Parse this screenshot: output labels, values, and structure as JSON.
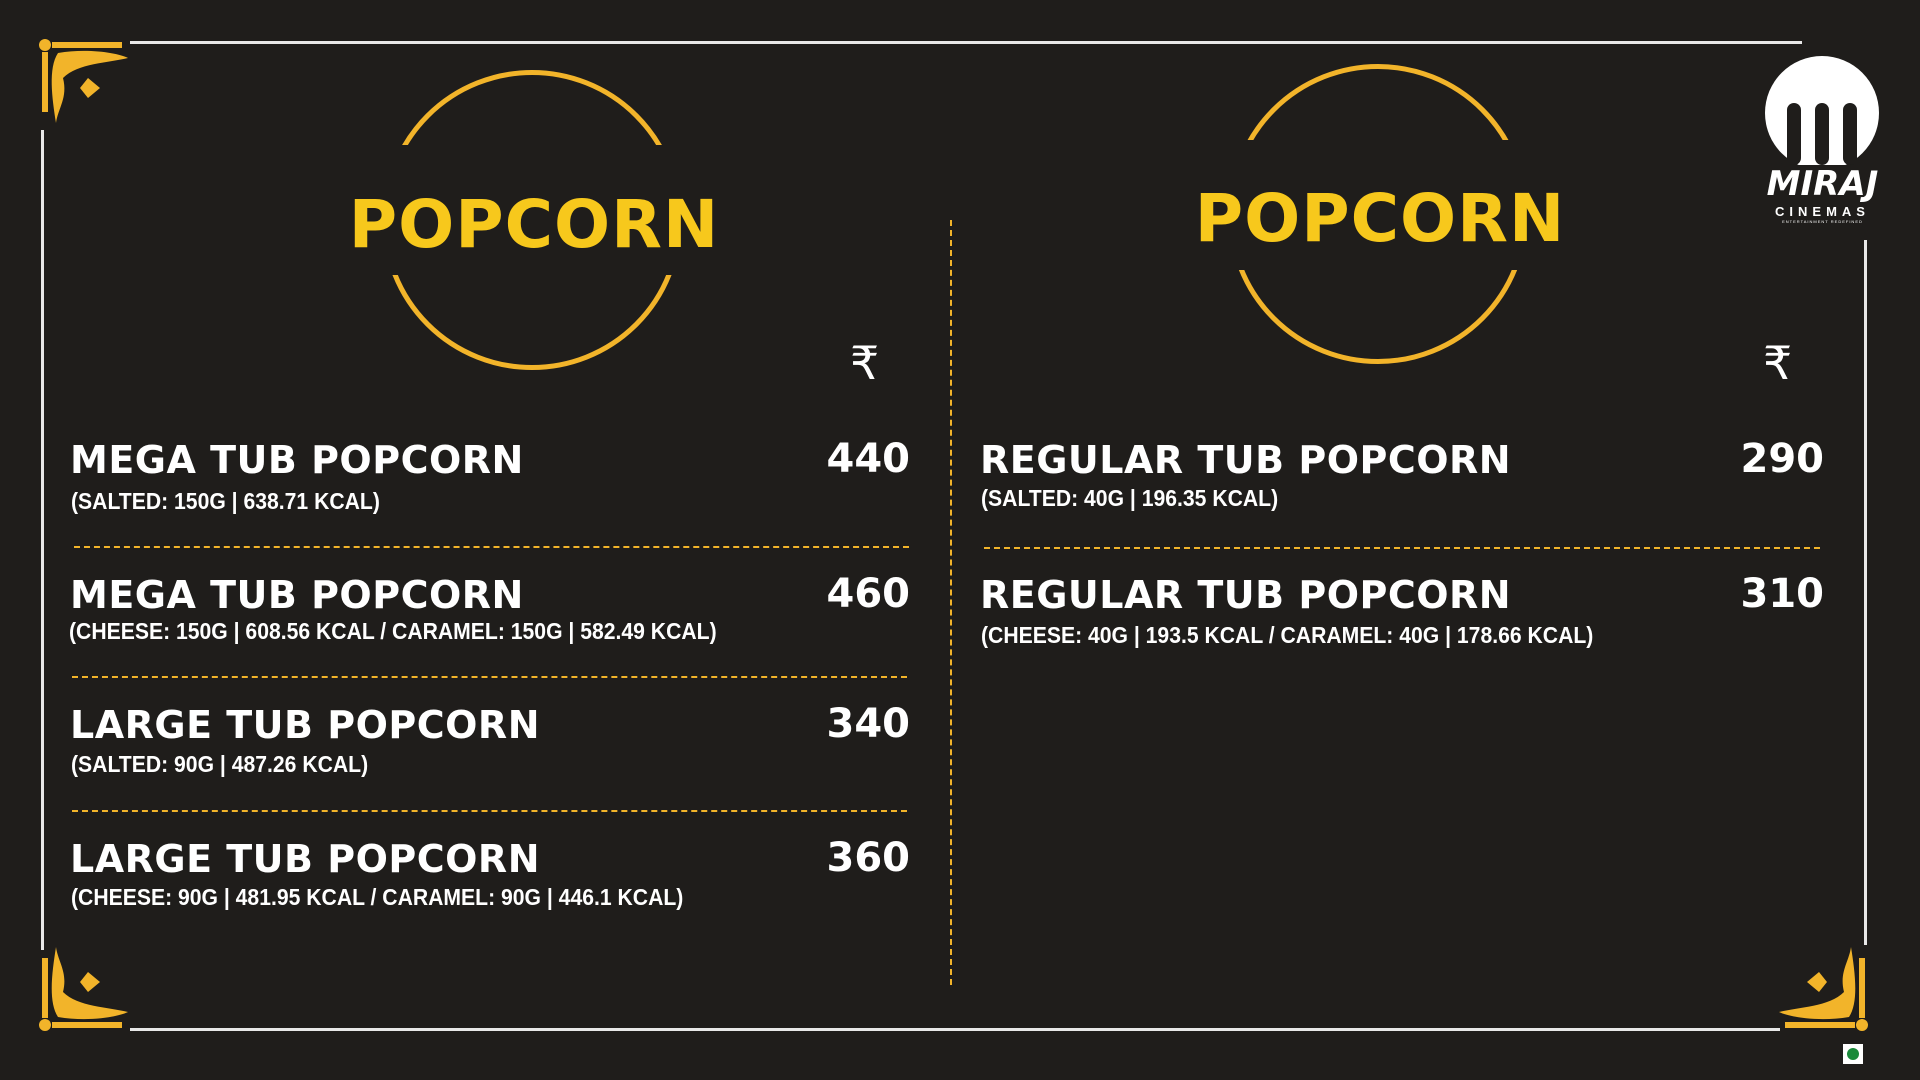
{
  "brand": {
    "name": "MIRAJ",
    "sub": "CINEMAS",
    "tagline": "ENTERTAINMENT REDEFINED"
  },
  "currency_symbol": "₹",
  "colors": {
    "background": "#1f1d1b",
    "accent": "#f7c81c",
    "ring": "#f2b42a",
    "text": "#ffffff"
  },
  "left": {
    "title": "POPCORN",
    "items": [
      {
        "name": "MEGA TUB POPCORN",
        "detail": "(SALTED: 150G | 638.71 KCAL)",
        "price": "440"
      },
      {
        "name": "MEGA TUB POPCORN",
        "detail": "(CHEESE: 150G | 608.56 KCAL  /  CARAMEL: 150G | 582.49 KCAL)",
        "price": "460"
      },
      {
        "name": "LARGE TUB POPCORN",
        "detail": "(SALTED: 90G | 487.26 KCAL)",
        "price": "340"
      },
      {
        "name": "LARGE TUB POPCORN",
        "detail": "(CHEESE: 90G | 481.95 KCAL  /  CARAMEL: 90G | 446.1 KCAL)",
        "price": "360"
      }
    ]
  },
  "right": {
    "title": "POPCORN",
    "items": [
      {
        "name": "REGULAR TUB POPCORN",
        "detail": "(SALTED: 40G | 196.35 KCAL)",
        "price": "290"
      },
      {
        "name": "REGULAR TUB POPCORN",
        "detail": "(CHEESE: 40G | 193.5 KCAL  /  CARAMEL: 40G | 178.66 KCAL)",
        "price": "310"
      }
    ]
  },
  "icons": {
    "corner": "ornament-corner-icon",
    "veg": "veg-mark-icon"
  }
}
